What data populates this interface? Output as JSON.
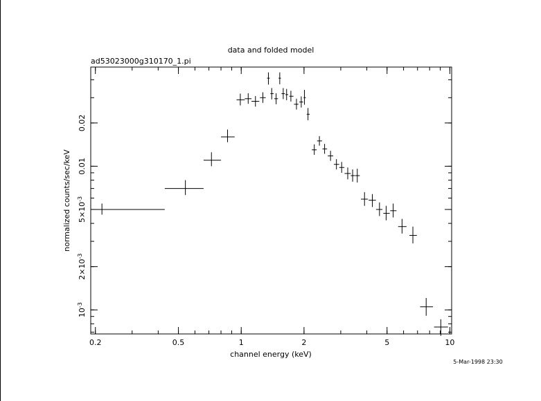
{
  "chart_data": {
    "type": "scatter",
    "title": "data and folded model",
    "subtitle": "ad53023000g310170_1.pi",
    "xlabel": "channel energy (keV)",
    "ylabel": "normalized counts/sec/keV",
    "timestamp": "5-Mar-1998 23:30",
    "x_scale": "log",
    "y_scale": "log",
    "xlim": [
      0.19,
      10.2
    ],
    "ylim": [
      0.00068,
      0.049
    ],
    "x_ticks": [
      {
        "value": 0.2,
        "label": "0.2"
      },
      {
        "value": 0.5,
        "label": "0.5"
      },
      {
        "value": 1,
        "label": "1"
      },
      {
        "value": 2,
        "label": "2"
      },
      {
        "value": 5,
        "label": "5"
      },
      {
        "value": 10,
        "label": "10"
      }
    ],
    "y_ticks": [
      {
        "value": 0.001,
        "label": "10",
        "exp": "-3"
      },
      {
        "value": 0.002,
        "label": "2×10",
        "exp": "-3"
      },
      {
        "value": 0.005,
        "label": "5×10",
        "exp": "-3"
      },
      {
        "value": 0.01,
        "label": "0.01",
        "exp": ""
      },
      {
        "value": 0.02,
        "label": "0.02",
        "exp": ""
      }
    ],
    "grid": false,
    "series": [
      {
        "marker": "error-cross",
        "points": [
          {
            "x": 0.215,
            "xlo": 0.19,
            "xhi": 0.43,
            "y": 0.005,
            "ylo": 0.0046,
            "yhi": 0.0055
          },
          {
            "x": 0.54,
            "xlo": 0.43,
            "xhi": 0.66,
            "y": 0.007,
            "ylo": 0.0063,
            "yhi": 0.008
          },
          {
            "x": 0.72,
            "xlo": 0.66,
            "xhi": 0.8,
            "y": 0.011,
            "ylo": 0.01,
            "yhi": 0.0125
          },
          {
            "x": 0.86,
            "xlo": 0.8,
            "xhi": 0.93,
            "y": 0.016,
            "ylo": 0.0147,
            "yhi": 0.018
          },
          {
            "x": 0.99,
            "xlo": 0.95,
            "xhi": 1.04,
            "y": 0.029,
            "ylo": 0.0265,
            "yhi": 0.032
          },
          {
            "x": 1.08,
            "xlo": 1.04,
            "xhi": 1.12,
            "y": 0.0295,
            "ylo": 0.0272,
            "yhi": 0.0322
          },
          {
            "x": 1.17,
            "xlo": 1.12,
            "xhi": 1.22,
            "y": 0.0283,
            "ylo": 0.026,
            "yhi": 0.0308
          },
          {
            "x": 1.27,
            "xlo": 1.23,
            "xhi": 1.31,
            "y": 0.03,
            "ylo": 0.0276,
            "yhi": 0.0327
          },
          {
            "x": 1.35,
            "xlo": 1.33,
            "xhi": 1.37,
            "y": 0.041,
            "ylo": 0.037,
            "yhi": 0.045
          },
          {
            "x": 1.4,
            "xlo": 1.38,
            "xhi": 1.43,
            "y": 0.032,
            "ylo": 0.0292,
            "yhi": 0.035
          },
          {
            "x": 1.47,
            "xlo": 1.44,
            "xhi": 1.5,
            "y": 0.0295,
            "ylo": 0.027,
            "yhi": 0.0322
          },
          {
            "x": 1.53,
            "xlo": 1.51,
            "xhi": 1.55,
            "y": 0.041,
            "ylo": 0.0372,
            "yhi": 0.045
          },
          {
            "x": 1.59,
            "xlo": 1.56,
            "xhi": 1.62,
            "y": 0.032,
            "ylo": 0.0293,
            "yhi": 0.035
          },
          {
            "x": 1.65,
            "xlo": 1.63,
            "xhi": 1.68,
            "y": 0.0315,
            "ylo": 0.0288,
            "yhi": 0.0345
          },
          {
            "x": 1.73,
            "xlo": 1.7,
            "xhi": 1.78,
            "y": 0.0307,
            "ylo": 0.0282,
            "yhi": 0.0335
          },
          {
            "x": 1.84,
            "xlo": 1.79,
            "xhi": 1.88,
            "y": 0.027,
            "ylo": 0.0248,
            "yhi": 0.0295
          },
          {
            "x": 1.94,
            "xlo": 1.9,
            "xhi": 1.98,
            "y": 0.028,
            "ylo": 0.0256,
            "yhi": 0.0306
          },
          {
            "x": 2.01,
            "xlo": 1.99,
            "xhi": 2.04,
            "y": 0.03,
            "ylo": 0.0268,
            "yhi": 0.034
          },
          {
            "x": 2.09,
            "xlo": 2.06,
            "xhi": 2.13,
            "y": 0.023,
            "ylo": 0.0209,
            "yhi": 0.0254
          },
          {
            "x": 2.24,
            "xlo": 2.18,
            "xhi": 2.3,
            "y": 0.013,
            "ylo": 0.012,
            "yhi": 0.0142
          },
          {
            "x": 2.37,
            "xlo": 2.31,
            "xhi": 2.44,
            "y": 0.015,
            "ylo": 0.0139,
            "yhi": 0.0162
          },
          {
            "x": 2.51,
            "xlo": 2.45,
            "xhi": 2.58,
            "y": 0.0132,
            "ylo": 0.0122,
            "yhi": 0.0143
          },
          {
            "x": 2.68,
            "xlo": 2.6,
            "xhi": 2.76,
            "y": 0.0118,
            "ylo": 0.0109,
            "yhi": 0.0128
          },
          {
            "x": 2.86,
            "xlo": 2.78,
            "xhi": 2.95,
            "y": 0.0103,
            "ylo": 0.0095,
            "yhi": 0.0112
          },
          {
            "x": 3.03,
            "xlo": 2.95,
            "xhi": 3.12,
            "y": 0.0098,
            "ylo": 0.009,
            "yhi": 0.0107
          },
          {
            "x": 3.24,
            "xlo": 3.13,
            "xhi": 3.35,
            "y": 0.0089,
            "ylo": 0.0081,
            "yhi": 0.0098
          },
          {
            "x": 3.42,
            "xlo": 3.35,
            "xhi": 3.5,
            "y": 0.0086,
            "ylo": 0.0078,
            "yhi": 0.0095
          },
          {
            "x": 3.6,
            "xlo": 3.51,
            "xhi": 3.7,
            "y": 0.0086,
            "ylo": 0.0077,
            "yhi": 0.0096
          },
          {
            "x": 3.9,
            "xlo": 3.75,
            "xhi": 4.05,
            "y": 0.0059,
            "ylo": 0.0053,
            "yhi": 0.0066
          },
          {
            "x": 4.25,
            "xlo": 4.08,
            "xhi": 4.42,
            "y": 0.0058,
            "ylo": 0.0052,
            "yhi": 0.0064
          },
          {
            "x": 4.6,
            "xlo": 4.43,
            "xhi": 4.75,
            "y": 0.005,
            "ylo": 0.0045,
            "yhi": 0.0056
          },
          {
            "x": 4.95,
            "xlo": 4.8,
            "xhi": 5.15,
            "y": 0.0047,
            "ylo": 0.0042,
            "yhi": 0.0053
          },
          {
            "x": 5.35,
            "xlo": 5.18,
            "xhi": 5.55,
            "y": 0.0049,
            "ylo": 0.0044,
            "yhi": 0.0055
          },
          {
            "x": 5.9,
            "xlo": 5.65,
            "xhi": 6.2,
            "y": 0.0038,
            "ylo": 0.0034,
            "yhi": 0.0043
          },
          {
            "x": 6.65,
            "xlo": 6.4,
            "xhi": 6.95,
            "y": 0.0033,
            "ylo": 0.0029,
            "yhi": 0.0038
          },
          {
            "x": 7.7,
            "xlo": 7.2,
            "xhi": 8.3,
            "y": 0.00105,
            "ylo": 0.00091,
            "yhi": 0.00121
          },
          {
            "x": 9.05,
            "xlo": 8.4,
            "xhi": 9.8,
            "y": 0.00076,
            "ylo": 0.00066,
            "yhi": 0.00086
          }
        ]
      }
    ]
  }
}
